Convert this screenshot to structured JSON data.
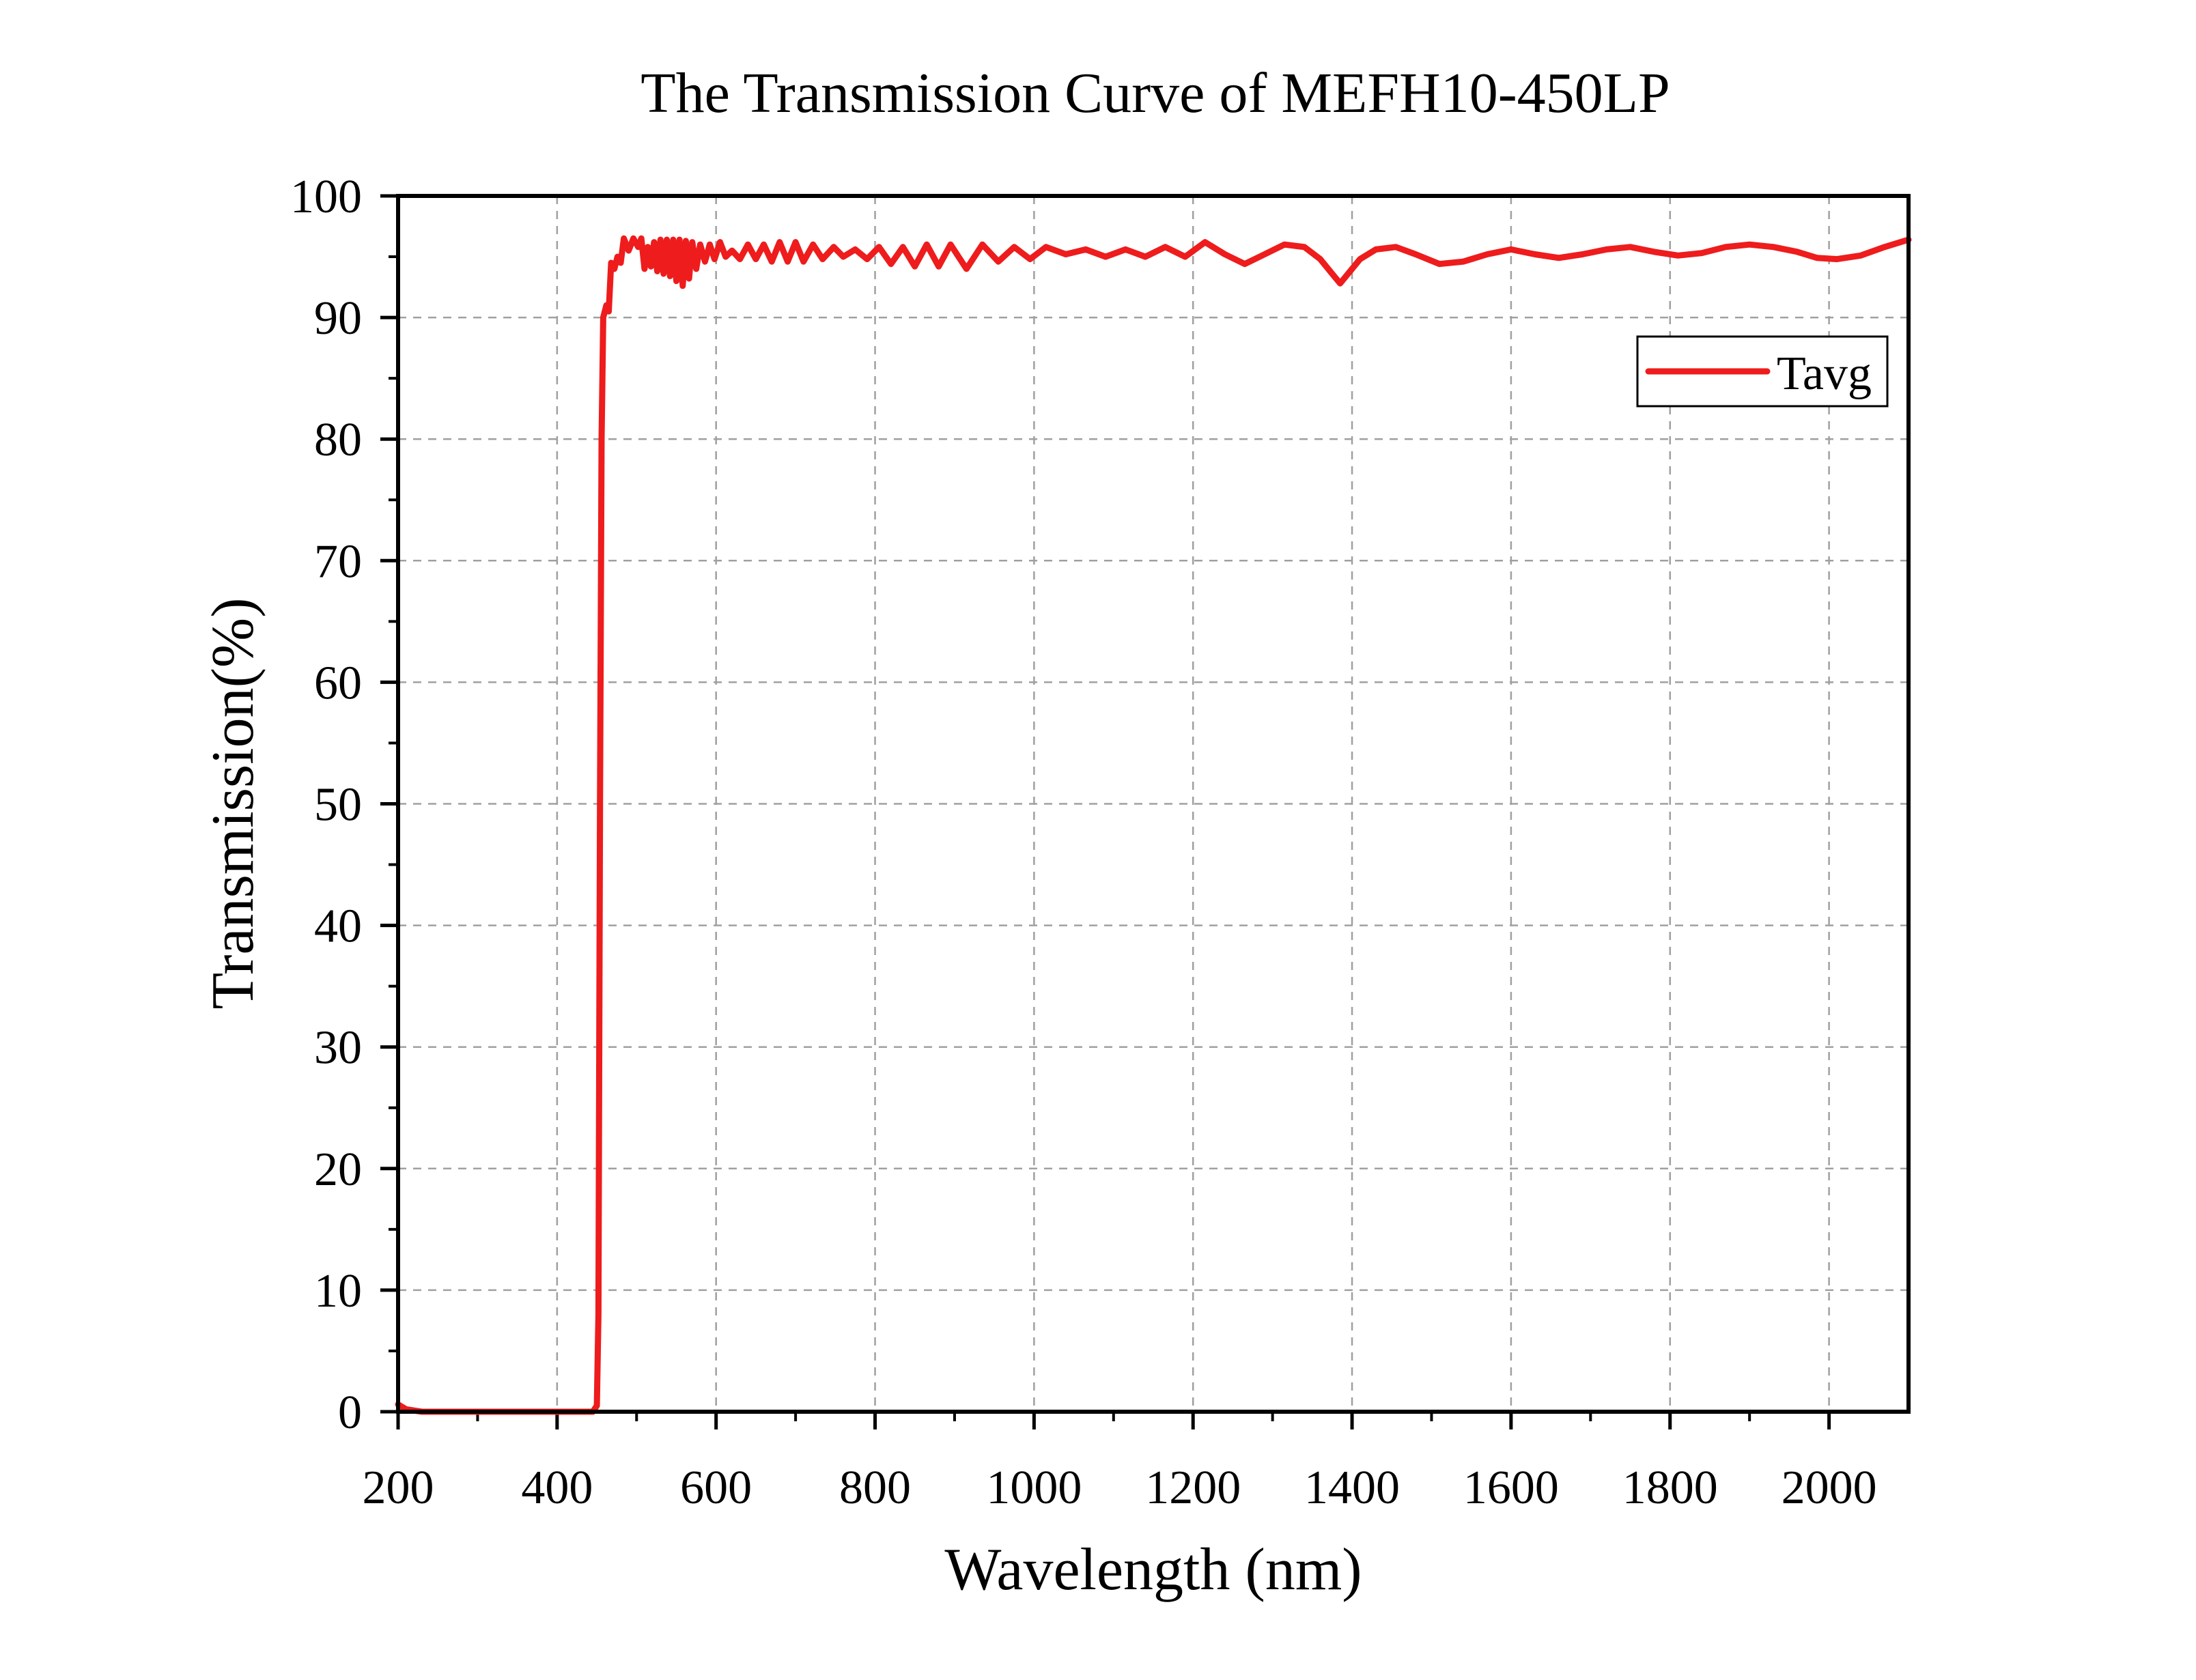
{
  "chart_data": {
    "type": "line",
    "title": "The Transmission Curve of MEFH10-450LP",
    "xlabel": "Wavelength (nm)",
    "ylabel": "Transmission(%)",
    "xlim": [
      200,
      2100
    ],
    "ylim": [
      0,
      100
    ],
    "x_ticks": [
      200,
      400,
      600,
      800,
      1000,
      1200,
      1400,
      1600,
      1800,
      2000
    ],
    "y_ticks": [
      0,
      10,
      20,
      30,
      40,
      50,
      60,
      70,
      80,
      90,
      100
    ],
    "grid": true,
    "legend_position": "top-right",
    "series": [
      {
        "name": "Tavg",
        "color": "#ee1c1c",
        "points": [
          [
            200,
            0.6
          ],
          [
            210,
            0.2
          ],
          [
            230,
            0
          ],
          [
            300,
            0
          ],
          [
            400,
            0
          ],
          [
            445,
            0
          ],
          [
            450,
            0.5
          ],
          [
            452,
            8
          ],
          [
            454,
            50
          ],
          [
            456,
            80
          ],
          [
            458,
            90
          ],
          [
            462,
            91
          ],
          [
            465,
            90.5
          ],
          [
            468,
            94.5
          ],
          [
            472,
            94
          ],
          [
            476,
            95
          ],
          [
            480,
            94.5
          ],
          [
            484,
            96.5
          ],
          [
            490,
            95.5
          ],
          [
            496,
            96.5
          ],
          [
            502,
            95.8
          ],
          [
            506,
            96.5
          ],
          [
            510,
            94.0
          ],
          [
            514,
            95.8
          ],
          [
            518,
            94.2
          ],
          [
            522,
            96.2
          ],
          [
            526,
            93.8
          ],
          [
            530,
            96.4
          ],
          [
            534,
            93.6
          ],
          [
            538,
            96.4
          ],
          [
            542,
            93.4
          ],
          [
            546,
            96.4
          ],
          [
            550,
            93.0
          ],
          [
            554,
            96.4
          ],
          [
            558,
            92.6
          ],
          [
            562,
            96.3
          ],
          [
            566,
            93.2
          ],
          [
            570,
            96.2
          ],
          [
            575,
            94.0
          ],
          [
            580,
            96.0
          ],
          [
            586,
            94.6
          ],
          [
            592,
            96.0
          ],
          [
            598,
            94.8
          ],
          [
            605,
            96.2
          ],
          [
            612,
            95.0
          ],
          [
            620,
            95.5
          ],
          [
            630,
            94.8
          ],
          [
            640,
            96.0
          ],
          [
            650,
            94.8
          ],
          [
            660,
            96.0
          ],
          [
            670,
            94.6
          ],
          [
            680,
            96.2
          ],
          [
            690,
            94.6
          ],
          [
            700,
            96.2
          ],
          [
            710,
            94.6
          ],
          [
            722,
            96.0
          ],
          [
            734,
            94.8
          ],
          [
            748,
            95.8
          ],
          [
            760,
            95.0
          ],
          [
            775,
            95.6
          ],
          [
            790,
            94.8
          ],
          [
            805,
            95.8
          ],
          [
            820,
            94.4
          ],
          [
            835,
            95.8
          ],
          [
            850,
            94.2
          ],
          [
            865,
            96.0
          ],
          [
            880,
            94.2
          ],
          [
            895,
            96.0
          ],
          [
            915,
            94.0
          ],
          [
            935,
            96.0
          ],
          [
            955,
            94.6
          ],
          [
            975,
            95.8
          ],
          [
            995,
            94.8
          ],
          [
            1015,
            95.8
          ],
          [
            1040,
            95.2
          ],
          [
            1065,
            95.6
          ],
          [
            1090,
            95.0
          ],
          [
            1115,
            95.6
          ],
          [
            1140,
            95.0
          ],
          [
            1165,
            95.8
          ],
          [
            1190,
            95.0
          ],
          [
            1215,
            96.2
          ],
          [
            1240,
            95.2
          ],
          [
            1265,
            94.4
          ],
          [
            1290,
            95.2
          ],
          [
            1315,
            96.0
          ],
          [
            1340,
            95.8
          ],
          [
            1360,
            94.8
          ],
          [
            1375,
            93.6
          ],
          [
            1385,
            92.8
          ],
          [
            1395,
            93.6
          ],
          [
            1410,
            94.8
          ],
          [
            1430,
            95.6
          ],
          [
            1455,
            95.8
          ],
          [
            1480,
            95.2
          ],
          [
            1510,
            94.4
          ],
          [
            1540,
            94.6
          ],
          [
            1570,
            95.2
          ],
          [
            1600,
            95.6
          ],
          [
            1630,
            95.2
          ],
          [
            1660,
            94.9
          ],
          [
            1690,
            95.2
          ],
          [
            1720,
            95.6
          ],
          [
            1750,
            95.8
          ],
          [
            1780,
            95.4
          ],
          [
            1810,
            95.1
          ],
          [
            1840,
            95.3
          ],
          [
            1870,
            95.8
          ],
          [
            1900,
            96.0
          ],
          [
            1930,
            95.8
          ],
          [
            1960,
            95.4
          ],
          [
            1985,
            94.9
          ],
          [
            2010,
            94.8
          ],
          [
            2040,
            95.1
          ],
          [
            2070,
            95.8
          ],
          [
            2100,
            96.4
          ]
        ]
      }
    ]
  }
}
